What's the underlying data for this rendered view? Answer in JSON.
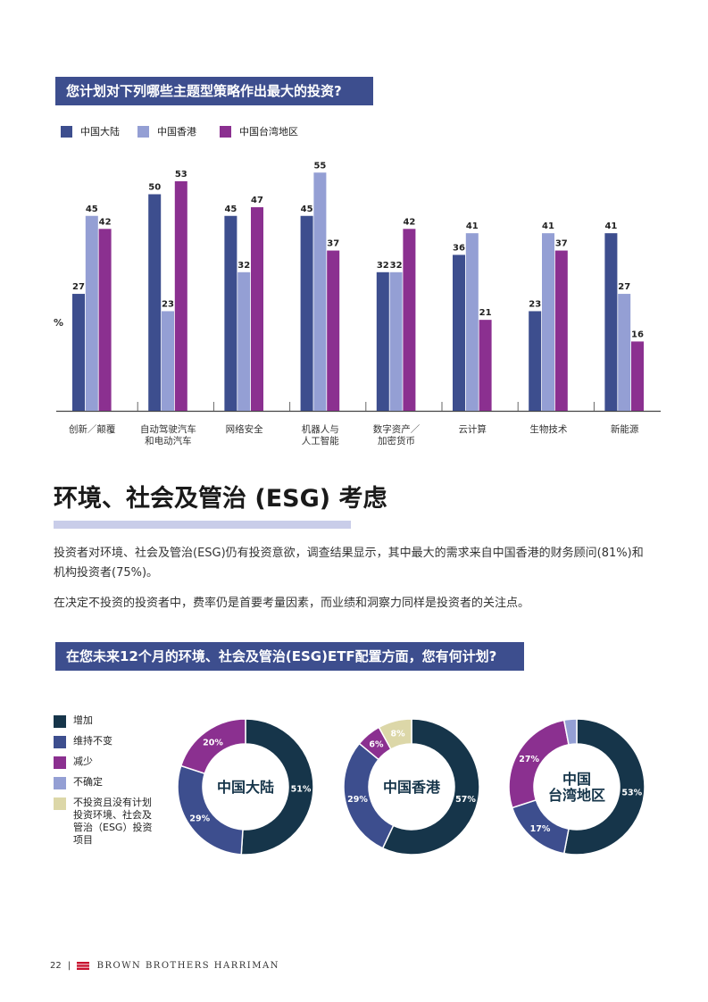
{
  "chart1": {
    "title": "您计划对下列哪些主题型策略作出最大的投资?",
    "ylabel": "%",
    "colors": [
      "#3d4e8e",
      "#949fd4",
      "#8b3090"
    ],
    "chart_data": {
      "type": "bar",
      "categories": [
        [
          "创新／颠覆"
        ],
        [
          "自动驾驶汽车",
          "和电动汽车"
        ],
        [
          "网络安全"
        ],
        [
          "机器人与",
          "人工智能"
        ],
        [
          "数字资产／",
          "加密货币"
        ],
        [
          "云计算"
        ],
        [
          "生物技术"
        ],
        [
          "新能源"
        ]
      ],
      "series": [
        {
          "name": "中国大陆",
          "values": [
            27,
            50,
            45,
            45,
            32,
            36,
            23,
            41
          ]
        },
        {
          "name": "中国香港",
          "values": [
            45,
            23,
            32,
            55,
            32,
            41,
            41,
            27
          ]
        },
        {
          "name": "中国台湾地区",
          "values": [
            42,
            53,
            47,
            37,
            42,
            21,
            37,
            16
          ]
        }
      ],
      "ylabel": "%",
      "legend": "top-left"
    }
  },
  "esg": {
    "title": "环境、社会及管治 (ESG) 考虑",
    "para1": "投资者对环境、社会及管治(ESG)仍有投资意欲，调查结果显示，其中最大的需求来自中国香港的财务顾问(81%)和机构投资者(75%)。",
    "para2": "在决定不投资的投资者中，费率仍是首要考量因素，而业绩和洞察力同样是投资者的关注点。"
  },
  "chart2": {
    "title": "在您未来12个月的环境、社会及管治(ESG)ETF配置方面，您有何计划?",
    "legend": [
      {
        "label": "增加",
        "color": "#16354a"
      },
      {
        "label": "维持不变",
        "color": "#3d4e8e"
      },
      {
        "label": "减少",
        "color": "#8b3090"
      },
      {
        "label": "不确定",
        "color": "#949fd4"
      },
      {
        "label": "不投资且没有计划投资环境、社会及管治（ESG）投资项目",
        "color": "#dcd7a8"
      }
    ],
    "chart_data": [
      {
        "type": "pie",
        "name": "中国大陆",
        "label_lines": [
          "中国大陆"
        ],
        "slices": [
          {
            "label": "增加",
            "value": 51
          },
          {
            "label": "维持不变",
            "value": 29
          },
          {
            "label": "减少",
            "value": 20
          }
        ]
      },
      {
        "type": "pie",
        "name": "中国香港",
        "label_lines": [
          "中国香港"
        ],
        "slices": [
          {
            "label": "增加",
            "value": 57
          },
          {
            "label": "维持不变",
            "value": 29
          },
          {
            "label": "减少",
            "value": 6
          },
          {
            "label": "不投资且没有计划投资环境、社会及管治（ESG）投资项目",
            "value": 8
          }
        ]
      },
      {
        "type": "pie",
        "name": "中国台湾地区",
        "label_lines": [
          "中国",
          "台湾地区"
        ],
        "slices": [
          {
            "label": "增加",
            "value": 53
          },
          {
            "label": "维持不变",
            "value": 17
          },
          {
            "label": "减少",
            "value": 27
          },
          {
            "label": "不确定",
            "value": 3
          }
        ]
      }
    ]
  },
  "footer": {
    "page": "22",
    "separator": "|",
    "brand": "BROWN BROTHERS HARRIMAN"
  }
}
